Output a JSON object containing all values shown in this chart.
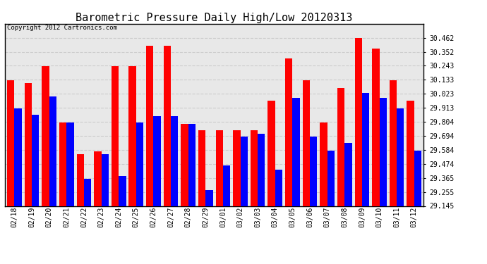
{
  "title": "Barometric Pressure Daily High/Low 20120313",
  "copyright": "Copyright 2012 Cartronics.com",
  "categories": [
    "02/18",
    "02/19",
    "02/20",
    "02/21",
    "02/22",
    "02/23",
    "02/24",
    "02/25",
    "02/26",
    "02/27",
    "02/28",
    "02/29",
    "03/01",
    "03/02",
    "03/03",
    "03/04",
    "03/05",
    "03/06",
    "03/07",
    "03/08",
    "03/09",
    "03/10",
    "03/11",
    "03/12"
  ],
  "highs": [
    30.13,
    30.11,
    30.24,
    29.8,
    29.55,
    29.57,
    30.24,
    30.24,
    30.4,
    30.4,
    29.79,
    29.74,
    29.74,
    29.74,
    29.74,
    29.97,
    30.3,
    30.13,
    29.8,
    30.07,
    30.46,
    30.38,
    30.13,
    29.97
  ],
  "lows": [
    29.91,
    29.86,
    30.0,
    29.8,
    29.36,
    29.55,
    29.38,
    29.8,
    29.85,
    29.85,
    29.79,
    29.27,
    29.46,
    29.69,
    29.71,
    29.43,
    29.99,
    29.69,
    29.58,
    29.64,
    30.03,
    29.99,
    29.91,
    29.58
  ],
  "bar_color_high": "#ff0000",
  "bar_color_low": "#0000ff",
  "background_color": "#ffffff",
  "plot_bg_color": "#e8e8e8",
  "grid_color": "#cccccc",
  "ylim_min": 29.145,
  "ylim_max": 30.572,
  "yticks": [
    29.145,
    29.255,
    29.365,
    29.474,
    29.584,
    29.694,
    29.804,
    29.913,
    30.023,
    30.133,
    30.243,
    30.352,
    30.462
  ],
  "title_fontsize": 11,
  "tick_fontsize": 7,
  "copyright_fontsize": 6.5,
  "bar_width": 0.42
}
